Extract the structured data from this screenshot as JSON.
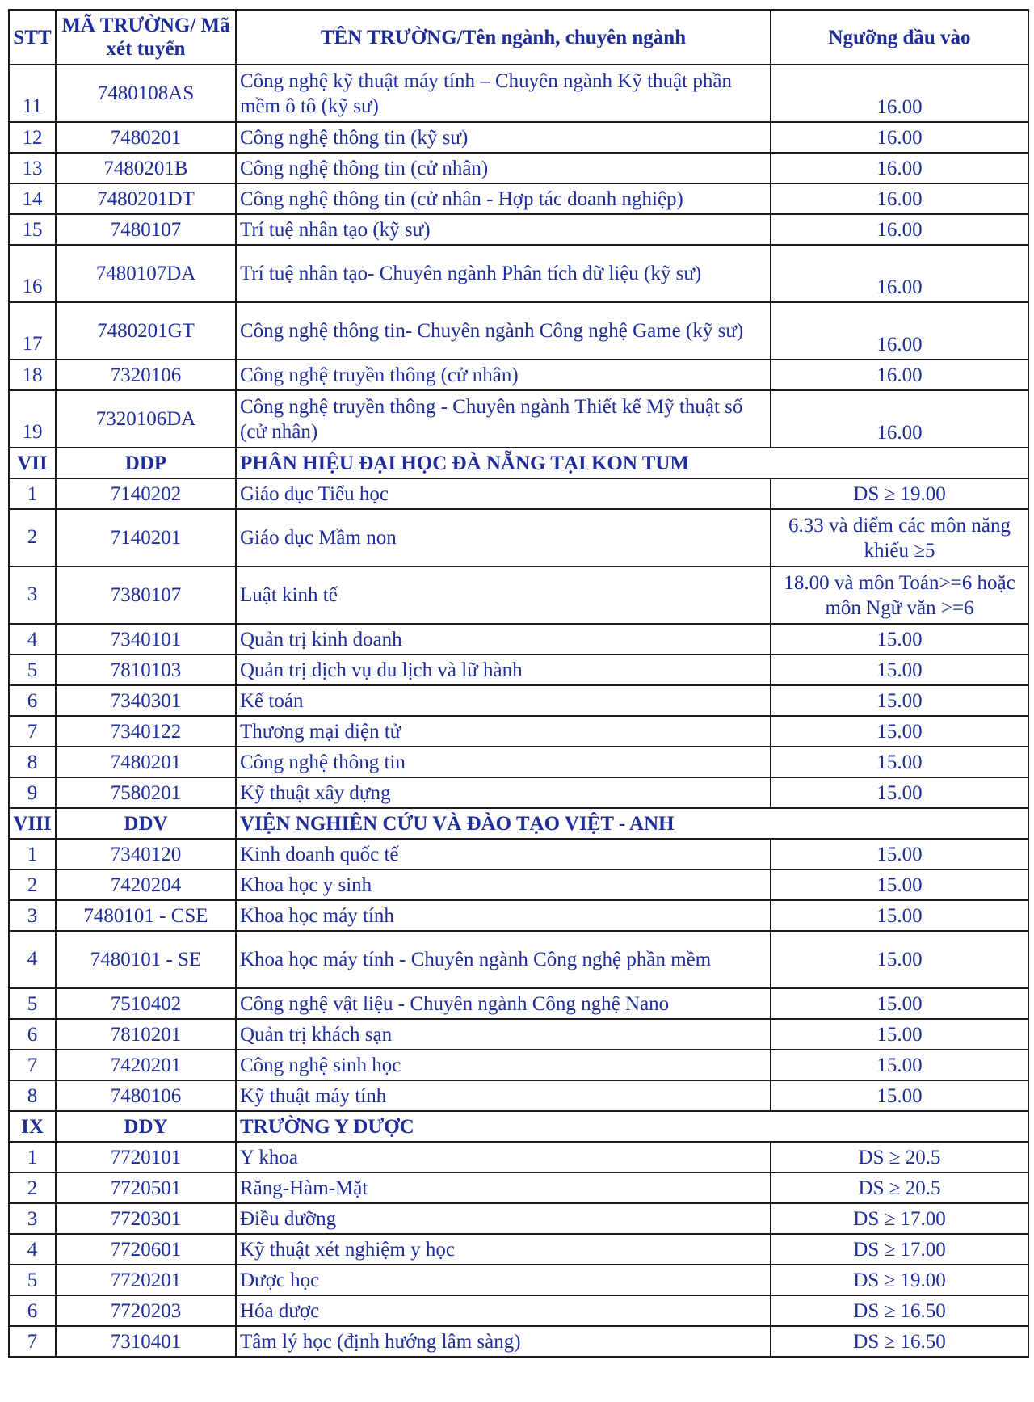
{
  "header": {
    "stt": "STT",
    "code": "MÃ TRƯỜNG/ Mã xét tuyển",
    "name": "TÊN TRƯỜNG/Tên ngành, chuyên ngành",
    "threshold": "Ngưỡng đầu vào"
  },
  "rows": [
    {
      "type": "item",
      "stt": "11",
      "code": "7480108AS",
      "name": "Công nghệ kỹ thuật máy tính – Chuyên ngành Kỹ thuật phần mềm ô tô (kỹ sư)",
      "threshold": "16.00",
      "tall": true,
      "bottom": true
    },
    {
      "type": "item",
      "stt": "12",
      "code": "7480201",
      "name": "Công nghệ thông tin (kỹ sư)",
      "threshold": "16.00"
    },
    {
      "type": "item",
      "stt": "13",
      "code": "7480201B",
      "name": "Công nghệ thông tin (cử nhân)",
      "threshold": "16.00"
    },
    {
      "type": "item",
      "stt": "14",
      "code": "7480201DT",
      "name": "Công nghệ thông tin (cử nhân - Hợp tác doanh nghiệp)",
      "threshold": "16.00"
    },
    {
      "type": "item",
      "stt": "15",
      "code": "7480107",
      "name": "Trí tuệ nhân tạo (kỹ sư)",
      "threshold": "16.00"
    },
    {
      "type": "item",
      "stt": "16",
      "code": "7480107DA",
      "name": "Trí tuệ nhân tạo- Chuyên ngành Phân tích dữ liệu (kỹ sư)",
      "threshold": "16.00",
      "tall": true,
      "bottom": true
    },
    {
      "type": "item",
      "stt": "17",
      "code": "7480201GT",
      "name": "Công nghệ thông tin- Chuyên ngành Công nghệ Game (kỹ sư)",
      "threshold": "16.00",
      "tall": true,
      "bottom": true
    },
    {
      "type": "item",
      "stt": "18",
      "code": "7320106",
      "name": "Công nghệ truyền thông (cử nhân)",
      "threshold": "16.00"
    },
    {
      "type": "item",
      "stt": "19",
      "code": "7320106DA",
      "name": "Công nghệ truyền thông - Chuyên ngành Thiết kế Mỹ thuật số (cử nhân)",
      "threshold": "16.00",
      "tall": true,
      "bottom": true
    },
    {
      "type": "section",
      "stt": "VII",
      "code": "DDP",
      "name": "PHÂN HIỆU ĐẠI HỌC ĐÀ NẴNG TẠI KON TUM"
    },
    {
      "type": "item",
      "stt": "1",
      "code": "7140202",
      "name": "Giáo dục Tiểu học",
      "threshold": "DS ≥ 19.00"
    },
    {
      "type": "item",
      "stt": "2",
      "code": "7140201",
      "name": "Giáo dục Mầm non",
      "threshold": "6.33 và điểm các môn năng khiếu ≥5",
      "tall": true
    },
    {
      "type": "item",
      "stt": "3",
      "code": "7380107",
      "name": "Luật kinh tế",
      "threshold": "18.00 và môn Toán>=6 hoặc môn Ngữ văn >=6",
      "tall": true
    },
    {
      "type": "item",
      "stt": "4",
      "code": "7340101",
      "name": "Quản trị kinh doanh",
      "threshold": "15.00"
    },
    {
      "type": "item",
      "stt": "5",
      "code": "7810103",
      "name": "Quản trị dịch vụ du lịch và lữ hành",
      "threshold": "15.00"
    },
    {
      "type": "item",
      "stt": "6",
      "code": "7340301",
      "name": "Kế toán",
      "threshold": "15.00"
    },
    {
      "type": "item",
      "stt": "7",
      "code": "7340122",
      "name": "Thương mại điện tử",
      "threshold": "15.00"
    },
    {
      "type": "item",
      "stt": "8",
      "code": "7480201",
      "name": "Công nghệ thông tin",
      "threshold": "15.00"
    },
    {
      "type": "item",
      "stt": "9",
      "code": "7580201",
      "name": "Kỹ thuật xây dựng",
      "threshold": "15.00"
    },
    {
      "type": "section",
      "stt": "VIII",
      "code": "DDV",
      "name": "VIỆN NGHIÊN CỨU VÀ ĐÀO TẠO VIỆT - ANH"
    },
    {
      "type": "item",
      "stt": "1",
      "code": "7340120",
      "name": "Kinh doanh quốc tế",
      "threshold": "15.00"
    },
    {
      "type": "item",
      "stt": "2",
      "code": "7420204",
      "name": "Khoa học y sinh",
      "threshold": "15.00"
    },
    {
      "type": "item",
      "stt": "3",
      "code": "7480101 - CSE",
      "name": "Khoa học máy tính",
      "threshold": "15.00"
    },
    {
      "type": "item",
      "stt": "4",
      "code": "7480101 - SE",
      "name": "Khoa học máy tính - Chuyên ngành Công nghệ phần mềm",
      "threshold": "15.00",
      "tall": true
    },
    {
      "type": "item",
      "stt": "5",
      "code": "7510402",
      "name": "Công nghệ vật liệu - Chuyên ngành Công nghệ Nano",
      "threshold": "15.00"
    },
    {
      "type": "item",
      "stt": "6",
      "code": "7810201",
      "name": "Quản trị khách sạn",
      "threshold": "15.00"
    },
    {
      "type": "item",
      "stt": "7",
      "code": "7420201",
      "name": "Công nghệ sinh học",
      "threshold": "15.00"
    },
    {
      "type": "item",
      "stt": "8",
      "code": "7480106",
      "name": "Kỹ thuật máy tính",
      "threshold": "15.00"
    },
    {
      "type": "section",
      "stt": "IX",
      "code": "DDY",
      "name": "TRƯỜNG Y DƯỢC"
    },
    {
      "type": "item",
      "stt": "1",
      "code": "7720101",
      "name": "Y khoa",
      "threshold": "DS ≥ 20.5"
    },
    {
      "type": "item",
      "stt": "2",
      "code": "7720501",
      "name": "Răng-Hàm-Mặt",
      "threshold": "DS ≥ 20.5"
    },
    {
      "type": "item",
      "stt": "3",
      "code": "7720301",
      "name": "Điều dưỡng",
      "threshold": "DS ≥ 17.00"
    },
    {
      "type": "item",
      "stt": "4",
      "code": "7720601",
      "name": "Kỹ thuật xét nghiệm y học",
      "threshold": "DS ≥ 17.00"
    },
    {
      "type": "item",
      "stt": "5",
      "code": "7720201",
      "name": "Dược học",
      "threshold": "DS ≥ 19.00"
    },
    {
      "type": "item",
      "stt": "6",
      "code": "7720203",
      "name": "Hóa dược",
      "threshold": "DS ≥ 16.50"
    },
    {
      "type": "item",
      "stt": "7",
      "code": "7310401",
      "name": "Tâm lý học (định hướng lâm sàng)",
      "threshold": "DS ≥ 16.50"
    }
  ]
}
